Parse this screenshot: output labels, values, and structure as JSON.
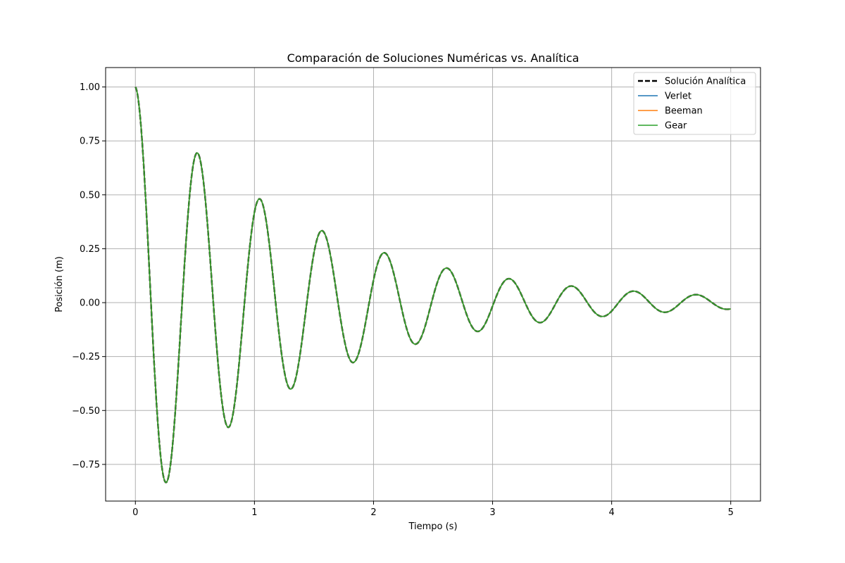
{
  "chart_data": {
    "type": "line",
    "title": "Comparación de Soluciones Numéricas vs. Analítica",
    "xlabel": "Tiempo (s)",
    "ylabel": "Posición (m)",
    "xlim": [
      -0.25,
      5.25
    ],
    "ylim": [
      -0.92,
      1.09
    ],
    "xticks": [
      0,
      1,
      2,
      3,
      4,
      5
    ],
    "xtick_labels": [
      "0",
      "1",
      "2",
      "3",
      "4",
      "5"
    ],
    "yticks": [
      -0.75,
      -0.5,
      -0.25,
      0.0,
      0.25,
      0.5,
      0.75,
      1.0
    ],
    "ytick_labels": [
      "−0.75",
      "−0.50",
      "−0.25",
      "0.00",
      "0.25",
      "0.50",
      "0.75",
      "1.00"
    ],
    "grid": true,
    "legend_position": "top-right",
    "model": {
      "x0": 1.0,
      "decay_rate": 0.7,
      "angular_frequency": 12.0,
      "t_start": 0,
      "t_end": 5
    },
    "series": [
      {
        "name": "Solución Analítica",
        "color": "#000000",
        "style": "dashed"
      },
      {
        "name": "Verlet",
        "color": "#1f77b4",
        "style": "solid"
      },
      {
        "name": "Beeman",
        "color": "#ff7f0e",
        "style": "solid"
      },
      {
        "name": "Gear",
        "color": "#2ca02c",
        "style": "solid"
      }
    ],
    "peaks": [
      {
        "x": 0.0,
        "y": 1.0
      },
      {
        "x": 0.26,
        "y": -0.83
      },
      {
        "x": 0.52,
        "y": 0.69
      },
      {
        "x": 0.78,
        "y": -0.57
      },
      {
        "x": 1.05,
        "y": 0.47
      },
      {
        "x": 1.31,
        "y": -0.39
      },
      {
        "x": 1.57,
        "y": 0.33
      },
      {
        "x": 1.83,
        "y": -0.27
      },
      {
        "x": 2.09,
        "y": 0.22
      },
      {
        "x": 2.36,
        "y": -0.18
      },
      {
        "x": 2.62,
        "y": 0.15
      },
      {
        "x": 2.88,
        "y": -0.12
      },
      {
        "x": 3.14,
        "y": 0.1
      },
      {
        "x": 3.4,
        "y": -0.09
      },
      {
        "x": 3.67,
        "y": 0.07
      },
      {
        "x": 3.93,
        "y": -0.06
      },
      {
        "x": 4.19,
        "y": 0.05
      },
      {
        "x": 4.45,
        "y": -0.04
      },
      {
        "x": 4.71,
        "y": 0.04
      },
      {
        "x": 5.0,
        "y": -0.03
      }
    ]
  }
}
